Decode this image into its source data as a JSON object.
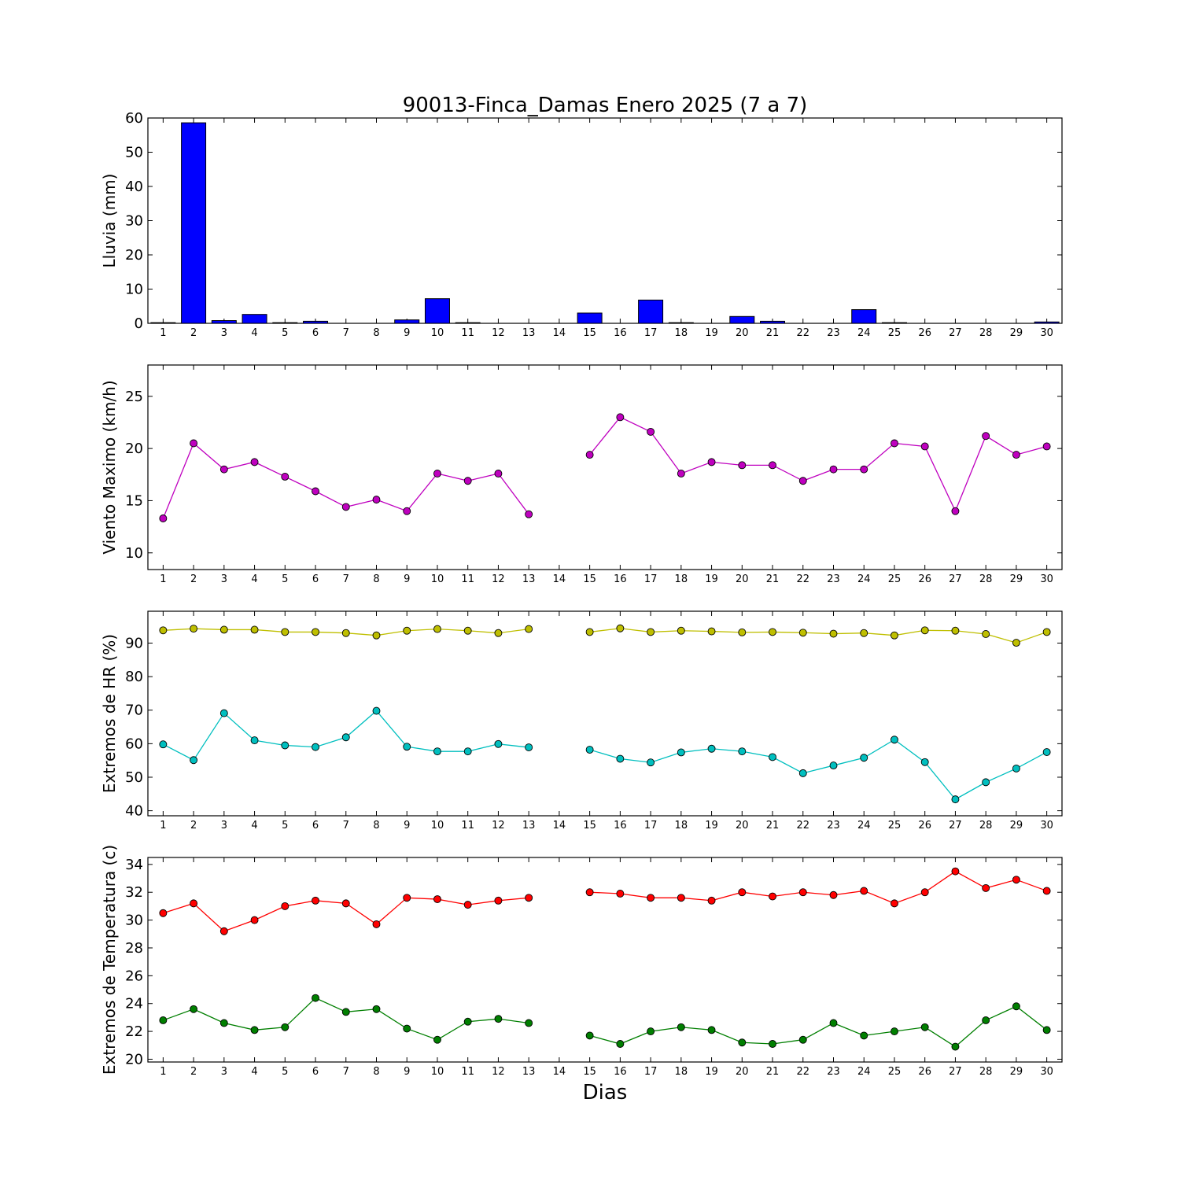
{
  "title": "90013-Finca_Damas Enero 2025  (7 a 7)",
  "xlabel": "Dias",
  "days": [
    1,
    2,
    3,
    4,
    5,
    6,
    7,
    8,
    9,
    10,
    11,
    12,
    13,
    14,
    15,
    16,
    17,
    18,
    19,
    20,
    21,
    22,
    23,
    24,
    25,
    26,
    27,
    28,
    29,
    30
  ],
  "chart_data": [
    {
      "type": "bar",
      "ylabel": "Lluvia (mm)",
      "ylim": [
        0,
        60
      ],
      "yticks": [
        0,
        10,
        20,
        30,
        40,
        50,
        60
      ],
      "categories": [
        1,
        2,
        3,
        4,
        5,
        6,
        7,
        8,
        9,
        10,
        11,
        12,
        13,
        14,
        15,
        16,
        17,
        18,
        19,
        20,
        21,
        22,
        23,
        24,
        25,
        26,
        27,
        28,
        29,
        30
      ],
      "series": [
        {
          "color": "#0000ff",
          "values": [
            0.2,
            58.6,
            0.8,
            2.6,
            0.2,
            0.6,
            0,
            0,
            1.0,
            7.2,
            0.2,
            0,
            0,
            0,
            3.0,
            0,
            6.8,
            0.2,
            0,
            2.0,
            0.6,
            0,
            0,
            4.0,
            0.2,
            0,
            0,
            0,
            0,
            0.4
          ]
        }
      ]
    },
    {
      "type": "line",
      "ylabel": "Viento Maximo (km/h)",
      "ylim": [
        8.4,
        28
      ],
      "yticks": [
        10,
        15,
        20,
        25
      ],
      "x": [
        1,
        2,
        3,
        4,
        5,
        6,
        7,
        8,
        9,
        10,
        11,
        12,
        13,
        14,
        15,
        16,
        17,
        18,
        19,
        20,
        21,
        22,
        23,
        24,
        25,
        26,
        27,
        28,
        29,
        30
      ],
      "series": [
        {
          "color": "#bf00bf",
          "values": [
            13.3,
            20.5,
            18.0,
            18.7,
            17.3,
            15.9,
            14.4,
            15.1,
            14.0,
            17.6,
            16.9,
            17.6,
            13.7,
            null,
            19.4,
            23.0,
            21.6,
            17.6,
            18.7,
            18.4,
            18.4,
            16.9,
            18.0,
            18.0,
            20.5,
            20.2,
            14.0,
            21.2,
            19.4,
            20.2
          ]
        }
      ]
    },
    {
      "type": "line",
      "ylabel": "Extremos de HR (%)",
      "ylim": [
        38.5,
        99.5
      ],
      "yticks": [
        40,
        50,
        60,
        70,
        80,
        90
      ],
      "x": [
        1,
        2,
        3,
        4,
        5,
        6,
        7,
        8,
        9,
        10,
        11,
        12,
        13,
        14,
        15,
        16,
        17,
        18,
        19,
        20,
        21,
        22,
        23,
        24,
        25,
        26,
        27,
        28,
        29,
        30
      ],
      "series": [
        {
          "color": "#bfbf00",
          "values": [
            93.8,
            94.3,
            94.0,
            94.0,
            93.3,
            93.3,
            93.0,
            92.3,
            93.7,
            94.2,
            93.7,
            93.0,
            94.2,
            null,
            93.3,
            94.4,
            93.3,
            93.7,
            93.5,
            93.2,
            93.3,
            93.1,
            92.8,
            93.0,
            92.3,
            93.8,
            93.7,
            92.7,
            90.1,
            93.3
          ]
        },
        {
          "color": "#00bfbf",
          "values": [
            59.8,
            55.1,
            69.1,
            61.0,
            59.5,
            59.0,
            61.9,
            69.8,
            59.1,
            57.7,
            57.7,
            59.9,
            58.9,
            null,
            58.2,
            55.5,
            54.4,
            57.4,
            58.5,
            57.7,
            56.0,
            51.2,
            53.5,
            55.8,
            61.2,
            54.5,
            43.4,
            48.5,
            52.6,
            57.5
          ]
        }
      ]
    },
    {
      "type": "line",
      "ylabel": "Extremos de Temperatura (c)",
      "ylim": [
        19.8,
        34.5
      ],
      "yticks": [
        20,
        22,
        24,
        26,
        28,
        30,
        32,
        34
      ],
      "x": [
        1,
        2,
        3,
        4,
        5,
        6,
        7,
        8,
        9,
        10,
        11,
        12,
        13,
        14,
        15,
        16,
        17,
        18,
        19,
        20,
        21,
        22,
        23,
        24,
        25,
        26,
        27,
        28,
        29,
        30
      ],
      "series": [
        {
          "color": "#ff0000",
          "values": [
            30.5,
            31.2,
            29.2,
            30.0,
            31.0,
            31.4,
            31.2,
            29.7,
            31.6,
            31.5,
            31.1,
            31.4,
            31.6,
            null,
            32.0,
            31.9,
            31.6,
            31.6,
            31.4,
            32.0,
            31.7,
            32.0,
            31.8,
            32.1,
            31.2,
            32.0,
            33.5,
            32.3,
            32.9,
            32.1
          ]
        },
        {
          "color": "#007f00",
          "values": [
            22.8,
            23.6,
            22.6,
            22.1,
            22.3,
            24.4,
            23.4,
            23.6,
            22.2,
            21.4,
            22.7,
            22.9,
            22.6,
            null,
            21.7,
            21.1,
            22.0,
            22.3,
            22.1,
            21.2,
            21.1,
            21.4,
            22.6,
            21.7,
            22.0,
            22.3,
            20.9,
            22.8,
            23.8,
            22.1
          ]
        }
      ]
    }
  ]
}
